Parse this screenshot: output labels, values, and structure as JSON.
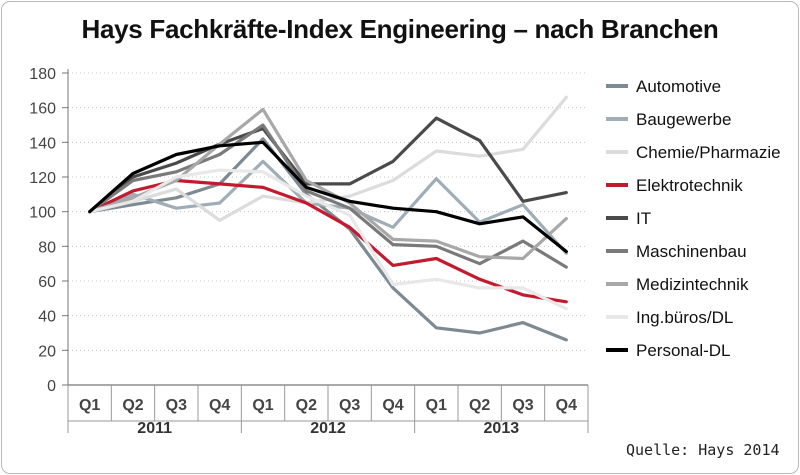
{
  "chart_data": {
    "type": "line",
    "title": "Hays Fachkräfte-Index Engineering – nach Branchen",
    "source": "Quelle: Hays 2014",
    "xlabel": "",
    "ylabel": "",
    "ylim": [
      0,
      180
    ],
    "yticks": [
      "0",
      "20",
      "40",
      "60",
      "80",
      "100",
      "120",
      "140",
      "160",
      "180"
    ],
    "categories": [
      "Q1",
      "Q2",
      "Q3",
      "Q4",
      "Q1",
      "Q2",
      "Q3",
      "Q4",
      "Q1",
      "Q2",
      "Q3",
      "Q4"
    ],
    "years": [
      "2011",
      "2012",
      "2013"
    ],
    "grid": true,
    "legend": "right",
    "series": [
      {
        "name": "Automotive",
        "color": "#7e8a92",
        "values": [
          100,
          104,
          108,
          116,
          142,
          110,
          90,
          56,
          33,
          30,
          36,
          26
        ]
      },
      {
        "name": "Baugewerbe",
        "color": "#9fadb6",
        "values": [
          100,
          110,
          102,
          105,
          129,
          105,
          102,
          91,
          119,
          94,
          104,
          76
        ]
      },
      {
        "name": "Chemie/Pharmazie",
        "color": "#dcdcdc",
        "values": [
          100,
          106,
          113,
          95,
          109,
          105,
          109,
          118,
          135,
          132,
          136,
          166
        ]
      },
      {
        "name": "Elektrotechnik",
        "color": "#c31a2f",
        "values": [
          100,
          112,
          118,
          116,
          114,
          105,
          91,
          69,
          73,
          61,
          52,
          48
        ]
      },
      {
        "name": "IT",
        "color": "#4a4a4a",
        "values": [
          100,
          120,
          128,
          139,
          148,
          116,
          116,
          129,
          154,
          141,
          106,
          111
        ]
      },
      {
        "name": "Maschinenbau",
        "color": "#7a7a7a",
        "values": [
          100,
          118,
          123,
          133,
          150,
          112,
          102,
          81,
          80,
          70,
          83,
          68
        ]
      },
      {
        "name": "Medizintechnik",
        "color": "#a8a8a8",
        "values": [
          100,
          108,
          118,
          139,
          159,
          118,
          105,
          84,
          83,
          74,
          73,
          96
        ]
      },
      {
        "name": "Ing.büros/DL",
        "color": "#e8e8e8",
        "values": [
          100,
          106,
          120,
          124,
          123,
          109,
          98,
          58,
          61,
          56,
          56,
          44
        ]
      },
      {
        "name": "Personal-DL",
        "color": "#000000",
        "values": [
          100,
          122,
          133,
          138,
          140,
          114,
          106,
          102,
          100,
          93,
          97,
          77
        ]
      }
    ]
  }
}
